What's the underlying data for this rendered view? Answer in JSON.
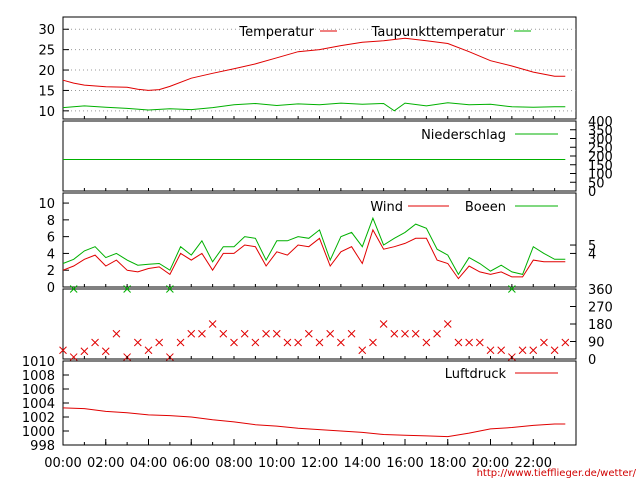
{
  "source_url": "http://www.tiefflieger.de/wetter/",
  "colors": {
    "red": "#e00000",
    "green": "#00b000",
    "frame": "#000000",
    "grid": "#999999"
  },
  "chart_data": [
    {
      "id": "temp",
      "type": "line",
      "ylim": [
        8,
        33
      ],
      "yticks": [
        10,
        15,
        20,
        25,
        30
      ],
      "grid": true,
      "legend_placement": "top",
      "series": [
        {
          "name": "Temperatur",
          "color": "red",
          "marker": false,
          "points": [
            [
              0,
              17.5
            ],
            [
              0.5,
              16.8
            ],
            [
              1,
              16.3
            ],
            [
              2,
              15.9
            ],
            [
              3,
              15.8
            ],
            [
              3.5,
              15.3
            ],
            [
              4,
              15.0
            ],
            [
              4.5,
              15.2
            ],
            [
              5,
              16.0
            ],
            [
              6,
              18.0
            ],
            [
              7,
              19.2
            ],
            [
              8,
              20.3
            ],
            [
              9,
              21.5
            ],
            [
              10,
              23.0
            ],
            [
              11,
              24.5
            ],
            [
              12,
              25.0
            ],
            [
              13,
              26.0
            ],
            [
              14,
              26.8
            ],
            [
              15,
              27.2
            ],
            [
              16,
              27.8
            ],
            [
              17,
              27.2
            ],
            [
              18,
              26.5
            ],
            [
              19,
              24.5
            ],
            [
              20,
              22.3
            ],
            [
              21,
              21.0
            ],
            [
              22,
              19.5
            ],
            [
              23,
              18.5
            ],
            [
              23.5,
              18.5
            ]
          ]
        },
        {
          "name": "Taupunkttemperatur",
          "color": "green",
          "marker": false,
          "points": [
            [
              0,
              10.8
            ],
            [
              1,
              11.2
            ],
            [
              2,
              10.9
            ],
            [
              3,
              10.6
            ],
            [
              4,
              10.2
            ],
            [
              5,
              10.5
            ],
            [
              6,
              10.3
            ],
            [
              7,
              10.8
            ],
            [
              8,
              11.5
            ],
            [
              9,
              11.8
            ],
            [
              10,
              11.3
            ],
            [
              11,
              11.7
            ],
            [
              12,
              11.5
            ],
            [
              13,
              11.9
            ],
            [
              14,
              11.6
            ],
            [
              15,
              11.8
            ],
            [
              15.5,
              10.0
            ],
            [
              16,
              11.9
            ],
            [
              17,
              11.2
            ],
            [
              18,
              12.0
            ],
            [
              19,
              11.5
            ],
            [
              20,
              11.6
            ],
            [
              21,
              11.0
            ],
            [
              22,
              10.9
            ],
            [
              23,
              11.0
            ],
            [
              23.5,
              11.0
            ]
          ]
        }
      ]
    },
    {
      "id": "niederschlag",
      "type": "line",
      "ylim": [
        0,
        400
      ],
      "yticks_right": [
        0,
        50,
        100,
        150,
        200,
        250,
        300,
        350,
        400
      ],
      "series": [
        {
          "name": "Niederschlag",
          "color": "green",
          "marker": false,
          "points": [
            [
              0,
              180
            ],
            [
              23.5,
              180
            ]
          ]
        }
      ]
    },
    {
      "id": "wind",
      "type": "line",
      "ylim": [
        0,
        11.2
      ],
      "yticks": [
        0,
        2,
        4,
        6,
        8,
        10
      ],
      "yticks_right": [
        4,
        5
      ],
      "series": [
        {
          "name": "Wind",
          "color": "red",
          "marker": false,
          "points": [
            [
              0,
              2.0
            ],
            [
              0.5,
              2.5
            ],
            [
              1,
              3.3
            ],
            [
              1.5,
              3.8
            ],
            [
              2,
              2.5
            ],
            [
              2.5,
              3.2
            ],
            [
              3,
              2.0
            ],
            [
              3.5,
              1.8
            ],
            [
              4,
              2.2
            ],
            [
              4.5,
              2.4
            ],
            [
              5,
              1.5
            ],
            [
              5.5,
              4.0
            ],
            [
              6,
              3.2
            ],
            [
              6.5,
              4.0
            ],
            [
              7,
              2.0
            ],
            [
              7.5,
              4.0
            ],
            [
              8,
              4.0
            ],
            [
              8.5,
              5.0
            ],
            [
              9,
              4.8
            ],
            [
              9.5,
              2.5
            ],
            [
              10,
              4.2
            ],
            [
              10.5,
              3.8
            ],
            [
              11,
              5.0
            ],
            [
              11.5,
              4.8
            ],
            [
              12,
              5.8
            ],
            [
              12.5,
              2.5
            ],
            [
              13,
              4.2
            ],
            [
              13.5,
              4.8
            ],
            [
              14,
              2.8
            ],
            [
              14.5,
              6.8
            ],
            [
              15,
              4.5
            ],
            [
              15.5,
              4.8
            ],
            [
              16,
              5.2
            ],
            [
              16.5,
              5.8
            ],
            [
              17,
              5.8
            ],
            [
              17.5,
              3.2
            ],
            [
              18,
              2.8
            ],
            [
              18.5,
              1.0
            ],
            [
              19,
              2.5
            ],
            [
              19.5,
              1.8
            ],
            [
              20,
              1.5
            ],
            [
              20.5,
              1.8
            ],
            [
              21,
              1.2
            ],
            [
              21.5,
              1.2
            ],
            [
              22,
              3.2
            ],
            [
              22.5,
              3.0
            ],
            [
              23,
              3.0
            ],
            [
              23.5,
              3.0
            ]
          ]
        },
        {
          "name": "Boeen",
          "color": "green",
          "marker": false,
          "points": [
            [
              0,
              2.8
            ],
            [
              0.5,
              3.3
            ],
            [
              1,
              4.3
            ],
            [
              1.5,
              4.8
            ],
            [
              2,
              3.5
            ],
            [
              2.5,
              4.0
            ],
            [
              3,
              3.2
            ],
            [
              3.5,
              2.6
            ],
            [
              4,
              2.7
            ],
            [
              4.5,
              2.8
            ],
            [
              5,
              2.0
            ],
            [
              5.5,
              4.8
            ],
            [
              6,
              3.8
            ],
            [
              6.5,
              5.5
            ],
            [
              7,
              3.0
            ],
            [
              7.5,
              4.8
            ],
            [
              8,
              4.8
            ],
            [
              8.5,
              6.0
            ],
            [
              9,
              5.8
            ],
            [
              9.5,
              3.2
            ],
            [
              10,
              5.5
            ],
            [
              10.5,
              5.5
            ],
            [
              11,
              6.0
            ],
            [
              11.5,
              5.8
            ],
            [
              12,
              6.8
            ],
            [
              12.5,
              3.2
            ],
            [
              13,
              6.0
            ],
            [
              13.5,
              6.5
            ],
            [
              14,
              4.8
            ],
            [
              14.5,
              8.2
            ],
            [
              15,
              5.0
            ],
            [
              15.5,
              5.8
            ],
            [
              16,
              6.5
            ],
            [
              16.5,
              7.5
            ],
            [
              17,
              7.0
            ],
            [
              17.5,
              4.5
            ],
            [
              18,
              3.8
            ],
            [
              18.5,
              1.5
            ],
            [
              19,
              3.5
            ],
            [
              19.5,
              2.8
            ],
            [
              20,
              1.9
            ],
            [
              20.5,
              2.6
            ],
            [
              21,
              1.8
            ],
            [
              21.5,
              1.5
            ],
            [
              22,
              4.8
            ],
            [
              22.5,
              4.0
            ],
            [
              23,
              3.3
            ],
            [
              23.5,
              3.3
            ]
          ]
        }
      ]
    },
    {
      "id": "windrichtung",
      "type": "scatter",
      "ylim": [
        0,
        360
      ],
      "yticks_right": [
        0,
        90,
        180,
        270,
        360
      ],
      "series": [
        {
          "name": "",
          "color": "red",
          "marker": "x",
          "points": [
            [
              0,
              45
            ],
            [
              0.5,
              10
            ],
            [
              1,
              40
            ],
            [
              1.5,
              85
            ],
            [
              2,
              40
            ],
            [
              2.5,
              130
            ],
            [
              3,
              10
            ],
            [
              3.5,
              85
            ],
            [
              4,
              45
            ],
            [
              4.5,
              85
            ],
            [
              5,
              10
            ],
            [
              5.5,
              85
            ],
            [
              6,
              130
            ],
            [
              6.5,
              130
            ],
            [
              7,
              180
            ],
            [
              7.5,
              130
            ],
            [
              8,
              85
            ],
            [
              8.5,
              130
            ],
            [
              9,
              85
            ],
            [
              9.5,
              130
            ],
            [
              10,
              130
            ],
            [
              10.5,
              85
            ],
            [
              11,
              85
            ],
            [
              11.5,
              130
            ],
            [
              12,
              85
            ],
            [
              12.5,
              130
            ],
            [
              13,
              85
            ],
            [
              13.5,
              130
            ],
            [
              14,
              45
            ],
            [
              14.5,
              85
            ],
            [
              15,
              180
            ],
            [
              15.5,
              130
            ],
            [
              16,
              130
            ],
            [
              16.5,
              130
            ],
            [
              17,
              85
            ],
            [
              17.5,
              130
            ],
            [
              18,
              180
            ],
            [
              18.5,
              85
            ],
            [
              19,
              85
            ],
            [
              19.5,
              85
            ],
            [
              20,
              45
            ],
            [
              20.5,
              45
            ],
            [
              21,
              10
            ],
            [
              21.5,
              45
            ],
            [
              22,
              45
            ],
            [
              22.5,
              85
            ],
            [
              23,
              45
            ],
            [
              23.5,
              85
            ]
          ]
        },
        {
          "name": "",
          "color": "green",
          "marker": "x",
          "points": [
            [
              0.5,
              360
            ],
            [
              3,
              360
            ],
            [
              5,
              360
            ],
            [
              21,
              360
            ]
          ]
        }
      ]
    },
    {
      "id": "luftdruck",
      "type": "line",
      "ylim": [
        998,
        1010
      ],
      "yticks": [
        998,
        1000,
        1002,
        1004,
        1006,
        1008,
        1010
      ],
      "xticks": [
        "00:00",
        "02:00",
        "04:00",
        "06:00",
        "08:00",
        "10:00",
        "12:00",
        "14:00",
        "16:00",
        "18:00",
        "20:00",
        "22:00"
      ],
      "xlim": [
        0,
        24
      ],
      "series": [
        {
          "name": "Luftdruck",
          "color": "red",
          "marker": false,
          "points": [
            [
              0,
              1003.3
            ],
            [
              1,
              1003.2
            ],
            [
              2,
              1002.8
            ],
            [
              3,
              1002.6
            ],
            [
              4,
              1002.3
            ],
            [
              5,
              1002.2
            ],
            [
              6,
              1002.0
            ],
            [
              7,
              1001.6
            ],
            [
              8,
              1001.3
            ],
            [
              9,
              1000.9
            ],
            [
              10,
              1000.7
            ],
            [
              11,
              1000.4
            ],
            [
              12,
              1000.2
            ],
            [
              13,
              1000.0
            ],
            [
              14,
              999.8
            ],
            [
              15,
              999.5
            ],
            [
              16,
              999.4
            ],
            [
              17,
              999.3
            ],
            [
              18,
              999.2
            ],
            [
              19,
              999.7
            ],
            [
              20,
              1000.3
            ],
            [
              21,
              1000.5
            ],
            [
              22,
              1000.8
            ],
            [
              23,
              1001.0
            ],
            [
              23.5,
              1001.0
            ]
          ]
        }
      ]
    }
  ]
}
